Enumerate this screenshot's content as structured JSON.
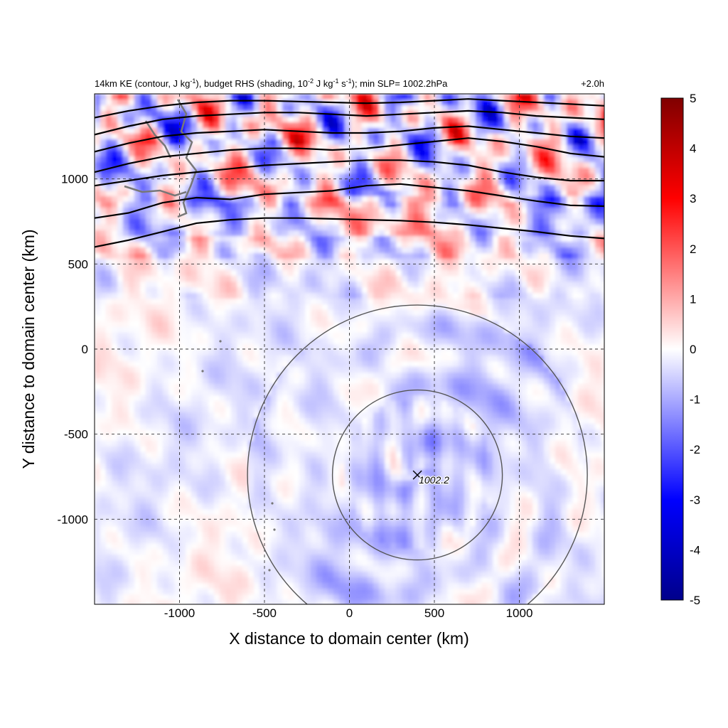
{
  "chart_data": {
    "type": "heatmap",
    "title_left": "14km KE (contour, J kg",
    "title_left_sup1": "-1",
    "title_left_mid": "), budget RHS (shading, 10",
    "title_left_sup2": "-2",
    "title_left_mid2": " J kg",
    "title_left_sup3": "-1",
    "title_left_mid3": " s",
    "title_left_sup4": "-1",
    "title_left_end": "); min SLP= 1002.2hPa",
    "title_right": "+2.0h",
    "xlabel": "X distance to domain center (km)",
    "ylabel": "Y distance to domain center (km)",
    "xlim": [
      -1500,
      1500
    ],
    "ylim": [
      -1500,
      1500
    ],
    "xticks": [
      -1000,
      -500,
      0,
      500,
      1000
    ],
    "xtick_labels": [
      "-1000",
      "-500",
      "0",
      "500",
      "1000"
    ],
    "yticks": [
      -1000,
      -500,
      0,
      500,
      1000
    ],
    "ytick_labels": [
      "-1000",
      "-500",
      "0",
      "500",
      "1000"
    ],
    "grid": "dashed",
    "colorbar": {
      "min": -5,
      "max": 5,
      "ticks": [
        -5,
        -4,
        -3,
        -2,
        -1,
        0,
        1,
        2,
        3,
        4,
        5
      ],
      "tick_labels": [
        "-5",
        "-4",
        "-3",
        "-2",
        "-1",
        "0",
        "1",
        "2",
        "3",
        "4",
        "5"
      ],
      "colors": [
        "#00008b",
        "#0000ff",
        "#ffffff",
        "#ff0000",
        "#800000"
      ],
      "placement": "right"
    },
    "storm_center": {
      "x": 400,
      "y": -740,
      "label": "1002.2"
    },
    "range_rings_km": [
      500,
      1000
    ],
    "ke_contours": [
      {
        "x": [
          -1500,
          -1300,
          -1100,
          -900,
          -700,
          -500,
          -300,
          -100,
          100,
          300,
          500,
          700,
          900,
          1100,
          1300,
          1500
        ],
        "y": [
          600,
          640,
          690,
          740,
          760,
          770,
          770,
          765,
          760,
          755,
          745,
          730,
          710,
          690,
          665,
          650
        ]
      },
      {
        "x": [
          -1500,
          -1300,
          -1100,
          -900,
          -700,
          -500,
          -300,
          -100,
          100,
          300,
          500,
          700,
          900,
          1100,
          1300,
          1500
        ],
        "y": [
          770,
          800,
          860,
          890,
          880,
          910,
          920,
          930,
          960,
          970,
          950,
          930,
          900,
          870,
          845,
          840
        ]
      },
      {
        "x": [
          -1500,
          -1300,
          -1100,
          -900,
          -700,
          -500,
          -300,
          -100,
          100,
          300,
          500,
          700,
          900,
          1100,
          1300,
          1500
        ],
        "y": [
          960,
          990,
          1020,
          1040,
          1060,
          1080,
          1090,
          1100,
          1110,
          1110,
          1100,
          1080,
          1040,
          1010,
          990,
          990
        ]
      },
      {
        "x": [
          -1500,
          -1300,
          -1100,
          -900,
          -700,
          -500,
          -300,
          -100,
          100,
          300,
          500,
          700,
          900,
          1100,
          1300,
          1500
        ],
        "y": [
          1040,
          1090,
          1130,
          1150,
          1170,
          1180,
          1180,
          1170,
          1180,
          1200,
          1220,
          1240,
          1220,
          1190,
          1150,
          1130
        ]
      },
      {
        "x": [
          -1500,
          -1300,
          -1100,
          -900,
          -700,
          -500,
          -300,
          -100,
          100,
          300,
          500,
          700,
          900,
          1100,
          1300,
          1500
        ],
        "y": [
          1160,
          1210,
          1250,
          1270,
          1280,
          1290,
          1280,
          1270,
          1270,
          1280,
          1300,
          1310,
          1290,
          1270,
          1250,
          1240
        ]
      },
      {
        "x": [
          -1500,
          -1300,
          -1100,
          -900,
          -700,
          -500,
          -300,
          -100,
          100,
          300,
          500,
          700,
          900,
          1100,
          1300,
          1500
        ],
        "y": [
          1260,
          1310,
          1350,
          1370,
          1380,
          1390,
          1390,
          1380,
          1370,
          1380,
          1390,
          1400,
          1390,
          1370,
          1360,
          1350
        ]
      },
      {
        "x": [
          -1500,
          -1300,
          -1100,
          -900,
          -700,
          -500,
          -300,
          -100,
          100,
          300,
          500,
          700,
          900,
          1100,
          1300,
          1500
        ],
        "y": [
          1360,
          1400,
          1430,
          1450,
          1460,
          1460,
          1455,
          1450,
          1445,
          1450,
          1460,
          1470,
          1460,
          1450,
          1440,
          1430
        ]
      }
    ]
  }
}
